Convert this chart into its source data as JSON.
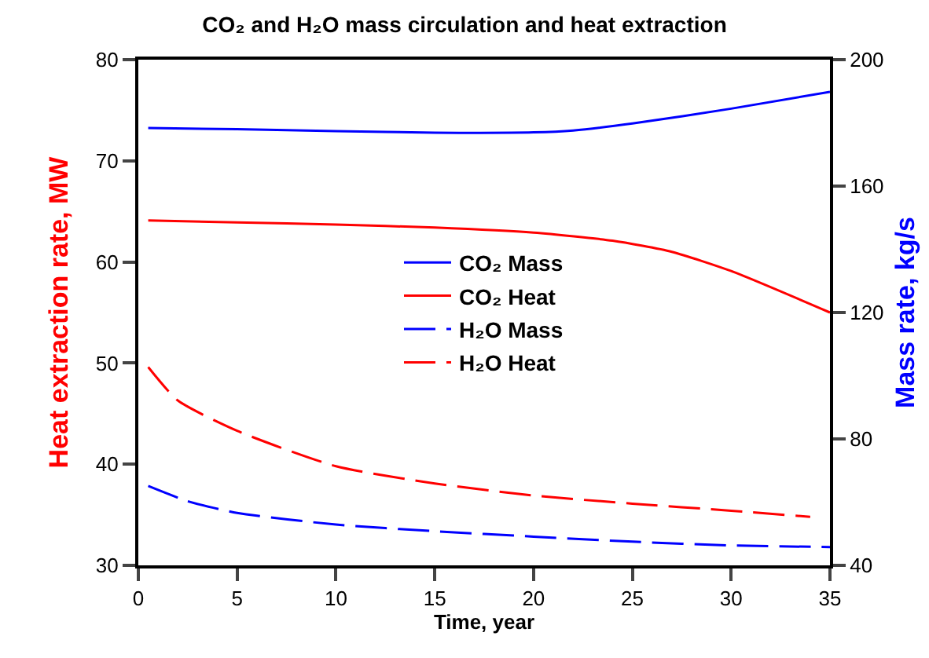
{
  "chart_data": {
    "type": "line",
    "title": "CO₂ and H₂O mass circulation and heat extraction",
    "xlabel": "Time, year",
    "ylabel": "Heat extraction rate, MW",
    "y2label": "Mass rate, kg/s",
    "xlim": [
      0,
      35
    ],
    "xticks": [
      0,
      5,
      10,
      15,
      20,
      25,
      30,
      35
    ],
    "ylim": [
      30,
      80
    ],
    "yticks": [
      30,
      40,
      50,
      60,
      70,
      80
    ],
    "y2lim": [
      40,
      200
    ],
    "y2ticks": [
      40,
      80,
      120,
      160,
      200
    ],
    "grid": false,
    "legend": "center",
    "marker": "none",
    "series": [
      {
        "name": "CO₂ Mass",
        "color": "#0000ff",
        "axis": "y2",
        "line_style": "solid",
        "x": [
          0.5,
          5,
          10,
          15,
          20,
          22,
          25,
          30,
          35
        ],
        "values": [
          178.4,
          178,
          177.4,
          176.9,
          177,
          177.6,
          179.8,
          184.5,
          189.8
        ]
      },
      {
        "name": "CO₂ Heat",
        "color": "#ff0000",
        "axis": "y",
        "line_style": "solid",
        "x": [
          0.5,
          5,
          10,
          15,
          20,
          24,
          27,
          30,
          35
        ],
        "values": [
          64.1,
          63.9,
          63.7,
          63.4,
          62.9,
          62.1,
          61,
          59.1,
          55
        ]
      },
      {
        "name": "H₂O Mass",
        "color": "#0000ff",
        "axis": "y2",
        "line_style": "dashed",
        "x": [
          0.5,
          2.5,
          5,
          10,
          15,
          20,
          25,
          30,
          35
        ],
        "values": [
          65.1,
          60.3,
          56.6,
          52.9,
          50.8,
          49.1,
          47.5,
          46.3,
          45.8
        ]
      },
      {
        "name": "H₂O Heat",
        "color": "#ff0000",
        "axis": "y",
        "line_style": "dashed",
        "x": [
          0.5,
          2,
          5,
          10,
          15,
          20,
          25,
          30,
          34
        ],
        "values": [
          49.6,
          46.3,
          43.3,
          39.8,
          38.1,
          36.9,
          36.1,
          35.4,
          34.8
        ]
      }
    ]
  }
}
